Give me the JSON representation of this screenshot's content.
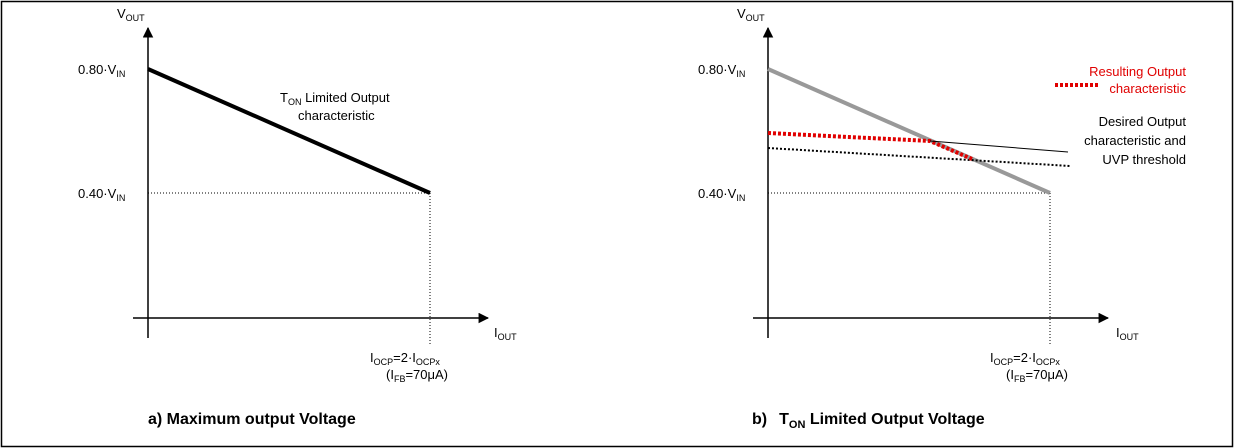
{
  "panel_a": {
    "y_axis_label": {
      "main": "V",
      "sub": "OUT"
    },
    "x_axis_label": {
      "main": "I",
      "sub": "OUT"
    },
    "y_tick_high": {
      "main": "0.80·V",
      "sub": "IN"
    },
    "y_tick_low": {
      "main": "0.40·V",
      "sub": "IN"
    },
    "x_tick_line1": {
      "p1": "I",
      "s1": "OCP",
      "p2": "=2·I",
      "s2": "OCPx"
    },
    "x_tick_line2": {
      "p1": "(I",
      "s1": "FB",
      "p2": "=70μA)"
    },
    "curve_label_line1": {
      "p1": "T",
      "s1": "ON",
      "p2": " Limited Output"
    },
    "curve_label_line2": "characteristic",
    "caption": "a) Maximum output Voltage"
  },
  "panel_b": {
    "y_axis_label": {
      "main": "V",
      "sub": "OUT"
    },
    "x_axis_label": {
      "main": "I",
      "sub": "OUT"
    },
    "y_tick_high": {
      "main": "0.80·V",
      "sub": "IN"
    },
    "y_tick_low": {
      "main": "0.40·V",
      "sub": "IN"
    },
    "x_tick_line1": {
      "p1": "I",
      "s1": "OCP",
      "p2": "=2·I",
      "s2": "OCPx"
    },
    "x_tick_line2": {
      "p1": "(I",
      "s1": "FB",
      "p2": "=70μA)"
    },
    "legend_resulting": [
      "Resulting Output",
      "characteristic"
    ],
    "legend_desired": [
      "Desired Output",
      "characteristic and",
      "UVP threshold"
    ],
    "caption_prefix": "b)",
    "caption_main": "T",
    "caption_sub": "ON",
    "caption_rest": " Limited Output Voltage"
  },
  "colors": {
    "axis": "#000000",
    "curve_a": "#000000",
    "grey_curve": "#999999",
    "resulting": "#e00000",
    "desired": "#000000"
  }
}
